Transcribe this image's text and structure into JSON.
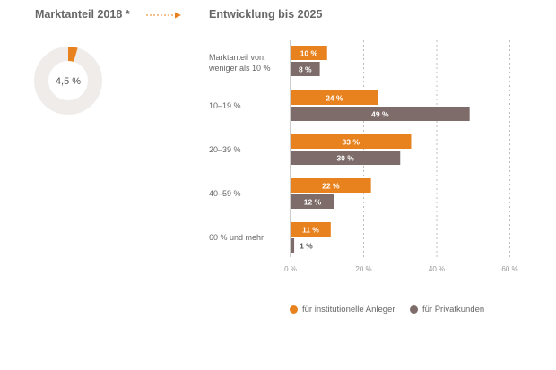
{
  "left_title": "Marktanteil 2018 *",
  "right_title": "Entwicklung bis 2025",
  "donut": {
    "value": 4.5,
    "max": 100,
    "label": "4,5 %"
  },
  "colors": {
    "institutional": "#e8821e",
    "private": "#7d6c69",
    "ring": "#efecea",
    "grid": "#bdbdbd",
    "text": "#666666"
  },
  "chart_data": {
    "type": "bar",
    "orientation": "horizontal",
    "category_prefix": [
      "Marktanteil von:",
      "weniger als 10 %"
    ],
    "categories": [
      "weniger als 10 %",
      "10–19 %",
      "20–39 %",
      "40–59 %",
      "60 % und mehr"
    ],
    "category_labels": [
      "",
      "10–19 %",
      "20–39 %",
      "40–59 %",
      "60 % und mehr"
    ],
    "series": [
      {
        "name": "für institutionelle Anleger",
        "values": [
          10,
          24,
          33,
          22,
          11
        ],
        "labels": [
          "10 %",
          "24 %",
          "33 %",
          "22 %",
          "11 %"
        ]
      },
      {
        "name": "für Privatkunden",
        "values": [
          8,
          49,
          30,
          12,
          1
        ],
        "labels": [
          "8 %",
          "49 %",
          "30 %",
          "12 %",
          "1 %"
        ]
      }
    ],
    "xlim": [
      0,
      60
    ],
    "xticks": [
      0,
      20,
      40,
      60
    ],
    "xtick_labels": [
      "0 %",
      "20 %",
      "40 %",
      "60 %"
    ],
    "grid": "vertical-dashed",
    "legend": "bottom"
  }
}
